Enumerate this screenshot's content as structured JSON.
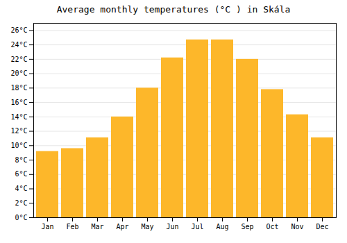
{
  "chart_data": {
    "type": "bar",
    "title": "Average monthly temperatures (°C ) in Skála",
    "categories": [
      "Jan",
      "Feb",
      "Mar",
      "Apr",
      "May",
      "Jun",
      "Jul",
      "Aug",
      "Sep",
      "Oct",
      "Nov",
      "Dec"
    ],
    "values": [
      9.2,
      9.6,
      11.1,
      14.0,
      18.0,
      22.2,
      24.7,
      24.7,
      22.0,
      17.8,
      14.3,
      11.1
    ],
    "color": "#FDB72A",
    "ylim": [
      0,
      27
    ],
    "yticks": [
      {
        "value": 0,
        "label": "0°C"
      },
      {
        "value": 2,
        "label": "2°C"
      },
      {
        "value": 4,
        "label": "4°C"
      },
      {
        "value": 6,
        "label": "6°C"
      },
      {
        "value": 8,
        "label": "8°C"
      },
      {
        "value": 10,
        "label": "10°C"
      },
      {
        "value": 12,
        "label": "12°C"
      },
      {
        "value": 14,
        "label": "14°C"
      },
      {
        "value": 16,
        "label": "16°C"
      },
      {
        "value": 18,
        "label": "18°C"
      },
      {
        "value": 20,
        "label": "20°C"
      },
      {
        "value": 22,
        "label": "22°C"
      },
      {
        "value": 24,
        "label": "24°C"
      },
      {
        "value": 26,
        "label": "26°C"
      }
    ],
    "grid": true
  }
}
